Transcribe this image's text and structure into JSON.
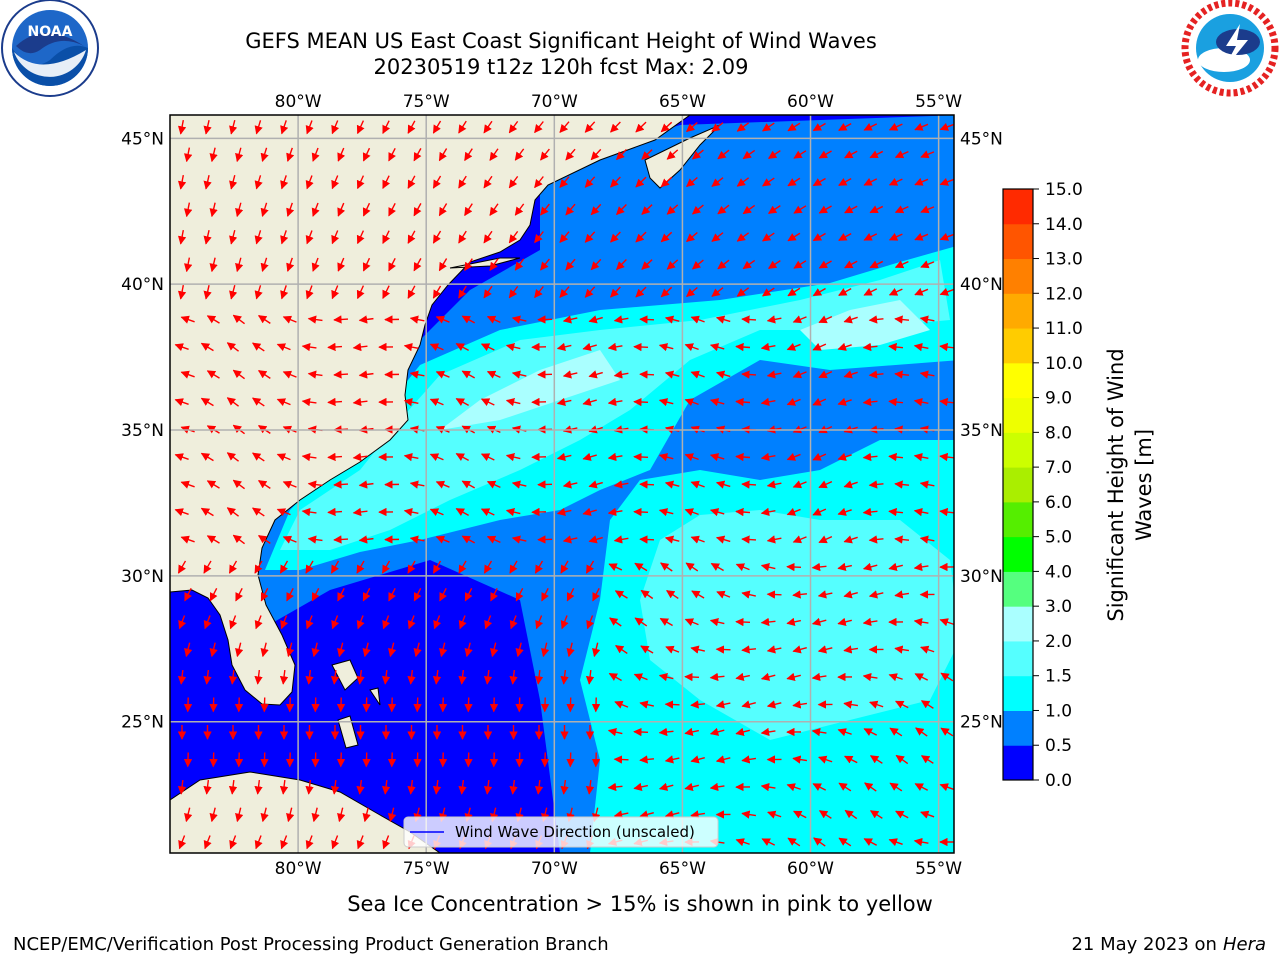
{
  "header": {
    "title_line1": "GEFS MEAN US East Coast Significant Height of Wind Waves",
    "title_line2": "20230519 t12z 120h fcst   Max: 2.09"
  },
  "logos": {
    "left": {
      "icon": "noaa-logo-icon",
      "wordmark": "NOAA"
    },
    "right": {
      "icon": "national-weather-service-logo-icon"
    }
  },
  "map": {
    "projection": "equirectangular",
    "lon_range": [
      -85,
      -54.4
    ],
    "lat_range": [
      20.5,
      45.8
    ],
    "grid": true,
    "lon_ticks": [
      {
        "value": -80,
        "label": "80°W"
      },
      {
        "value": -75,
        "label": "75°W"
      },
      {
        "value": -70,
        "label": "70°W"
      },
      {
        "value": -65,
        "label": "65°W"
      },
      {
        "value": -60,
        "label": "60°W"
      },
      {
        "value": -55,
        "label": "55°W"
      }
    ],
    "lat_ticks": [
      {
        "value": 45,
        "label": "45°N"
      },
      {
        "value": 40,
        "label": "40°N"
      },
      {
        "value": 35,
        "label": "35°N"
      },
      {
        "value": 30,
        "label": "30°N"
      },
      {
        "value": 25,
        "label": "25°N"
      }
    ],
    "land_color": "#efeedc",
    "arrow_color": "#ff0000",
    "legend_label": "Wind Wave Direction (unscaled)",
    "legend_placement": "bottom-center"
  },
  "colorbar": {
    "label": "Significant Height of Wind Waves [m]",
    "label_line1": "Significant Height of Wind",
    "label_line2": "Waves [m]",
    "ticks": [
      "0.0",
      "0.5",
      "1.0",
      "1.5",
      "2.0",
      "3.0",
      "4.0",
      "5.0",
      "6.0",
      "7.0",
      "8.0",
      "9.0",
      "10.0",
      "11.0",
      "12.0",
      "13.0",
      "14.0",
      "15.0"
    ],
    "colors": [
      "#0000ff",
      "#0080ff",
      "#00ffff",
      "#55ffff",
      "#aaffff",
      "#55ff7f",
      "#00ff00",
      "#55ee00",
      "#aaee00",
      "#ccff00",
      "#eeff00",
      "#ffff00",
      "#ffcc00",
      "#ffaa00",
      "#ff8000",
      "#ff5500",
      "#ff2a00"
    ]
  },
  "notes": {
    "sea_ice": "Sea Ice Concentration > 15% is shown in pink to yellow"
  },
  "footer": {
    "left": "NCEP/EMC/Verification Post Processing Product Generation Branch",
    "right_date": "21 May 2023 on",
    "right_host": "Hera"
  }
}
